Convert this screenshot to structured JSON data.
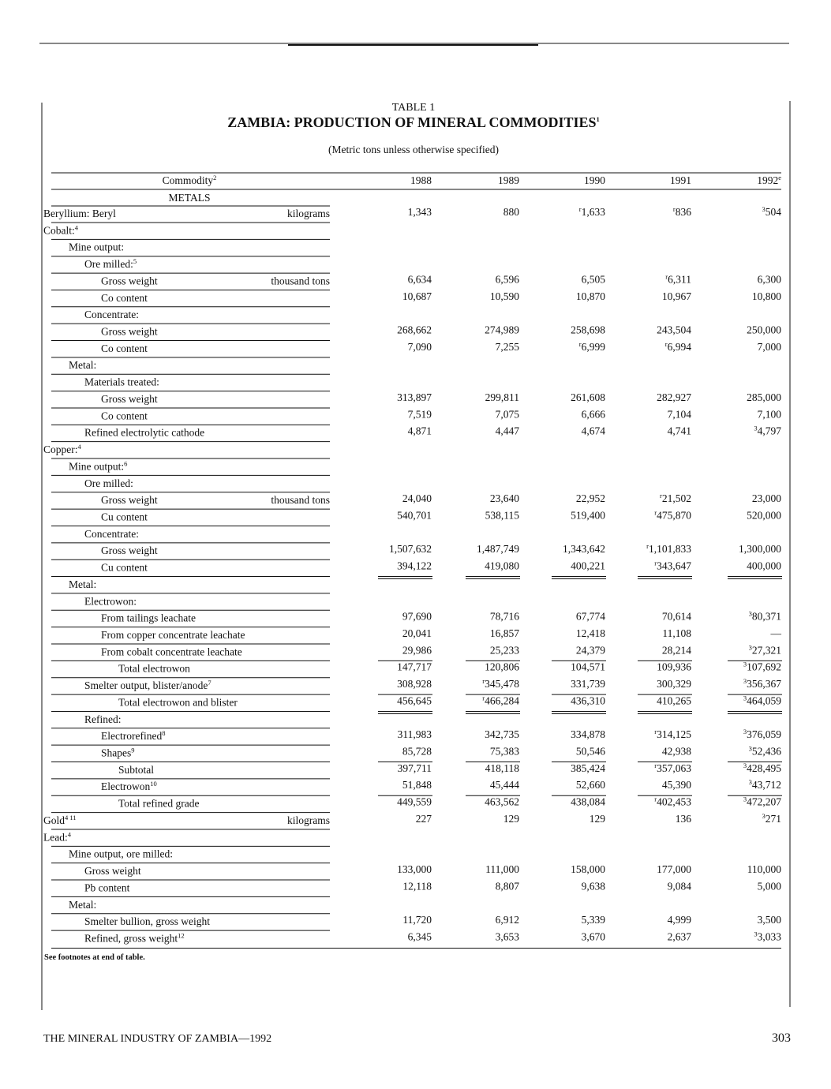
{
  "header": {
    "table_number": "TABLE 1",
    "title": "ZAMBIA: PRODUCTION OF MINERAL COMMODITIES",
    "title_note": "1",
    "subtitle": "(Metric tons unless otherwise specified)"
  },
  "table": {
    "columns": [
      {
        "label": "Commodity",
        "note": "2"
      },
      {
        "label": "1988"
      },
      {
        "label": "1989"
      },
      {
        "label": "1990"
      },
      {
        "label": "1991"
      },
      {
        "label": "1992",
        "note": "e"
      }
    ],
    "section": "METALS",
    "rows": [
      {
        "label": "Beryllium: Beryl",
        "unit": "kilograms",
        "values": [
          "1,343",
          "880",
          {
            "note": "r",
            "value": "1,633"
          },
          {
            "note": "r",
            "value": "836"
          },
          {
            "note": "3",
            "value": "504"
          }
        ]
      },
      {
        "label": "Cobalt:",
        "note": "4"
      },
      {
        "label": "Mine output:"
      },
      {
        "label": "Ore milled:",
        "note": "5"
      },
      {
        "label": "Gross weight",
        "unit": "thousand tons",
        "values": [
          "6,634",
          "6,596",
          "6,505",
          {
            "note": "r",
            "value": "6,311"
          },
          "6,300"
        ]
      },
      {
        "label": "Co content",
        "values": [
          "10,687",
          "10,590",
          "10,870",
          "10,967",
          "10,800"
        ]
      },
      {
        "label": "Concentrate:"
      },
      {
        "label": "Gross weight",
        "values": [
          "268,662",
          "274,989",
          "258,698",
          "243,504",
          "250,000"
        ]
      },
      {
        "label": "Co content",
        "values": [
          "7,090",
          "7,255",
          {
            "note": "r",
            "value": "6,999"
          },
          {
            "note": "r",
            "value": "6,994"
          },
          "7,000"
        ]
      },
      {
        "label": "Metal:"
      },
      {
        "label": "Materials treated:"
      },
      {
        "label": "Gross weight",
        "values": [
          "313,897",
          "299,811",
          "261,608",
          "282,927",
          "285,000"
        ]
      },
      {
        "label": "Co content",
        "values": [
          "7,519",
          "7,075",
          "6,666",
          "7,104",
          "7,100"
        ]
      },
      {
        "label": "Refined electrolytic cathode",
        "values": [
          "4,871",
          "4,447",
          "4,674",
          "4,741",
          {
            "note": "3",
            "value": "4,797"
          }
        ]
      },
      {
        "label": "Copper:",
        "note": "4"
      },
      {
        "label": "Mine output:",
        "note": "6"
      },
      {
        "label": "Ore milled:"
      },
      {
        "label": "Gross weight",
        "unit": "thousand tons",
        "values": [
          "24,040",
          "23,640",
          "22,952",
          {
            "note": "r",
            "value": "21,502"
          },
          "23,000"
        ]
      },
      {
        "label": "Cu content",
        "values": [
          "540,701",
          "538,115",
          "519,400",
          {
            "note": "r",
            "value": "475,870"
          },
          "520,000"
        ]
      },
      {
        "label": "Concentrate:"
      },
      {
        "label": "Gross weight",
        "values": [
          "1,507,632",
          "1,487,749",
          "1,343,642",
          {
            "note": "r",
            "value": "1,101,833"
          },
          "1,300,000"
        ]
      },
      {
        "label": "Cu content",
        "values": [
          "394,122",
          "419,080",
          "400,221",
          {
            "note": "r",
            "value": "343,647"
          },
          "400,000"
        ]
      },
      {
        "label": "Metal:"
      },
      {
        "label": "Electrowon:"
      },
      {
        "label": "From tailings leachate",
        "values": [
          "97,690",
          "78,716",
          "67,774",
          "70,614",
          {
            "note": "3",
            "value": "80,371"
          }
        ]
      },
      {
        "label": "From copper concentrate leachate",
        "values": [
          "20,041",
          "16,857",
          "12,418",
          "11,108",
          "—"
        ]
      },
      {
        "label": "From cobalt concentrate leachate",
        "values": [
          "29,986",
          "25,233",
          "24,379",
          "28,214",
          {
            "note": "3",
            "value": "27,321"
          }
        ]
      },
      {
        "label": "Total electrowon",
        "values": [
          "147,717",
          "120,806",
          "104,571",
          "109,936",
          {
            "note": "3",
            "value": "107,692"
          }
        ]
      },
      {
        "label": "Smelter output, blister/anode",
        "note": "7",
        "values": [
          "308,928",
          {
            "note": "r",
            "value": "345,478"
          },
          "331,739",
          "300,329",
          {
            "note": "3",
            "value": "356,367"
          }
        ]
      },
      {
        "label": "Total electrowon and blister",
        "values": [
          "456,645",
          {
            "note": "r",
            "value": "466,284"
          },
          "436,310",
          "410,265",
          {
            "note": "3",
            "value": "464,059"
          }
        ]
      },
      {
        "label": "Refined:"
      },
      {
        "label": "Electrorefined",
        "note": "8",
        "values": [
          "311,983",
          "342,735",
          "334,878",
          {
            "note": "r",
            "value": "314,125"
          },
          {
            "note": "3",
            "value": "376,059"
          }
        ]
      },
      {
        "label": "Shapes",
        "note": "9",
        "values": [
          "85,728",
          "75,383",
          "50,546",
          "42,938",
          {
            "note": "3",
            "value": "52,436"
          }
        ]
      },
      {
        "label": "Subtotal",
        "values": [
          "397,711",
          "418,118",
          "385,424",
          {
            "note": "r",
            "value": "357,063"
          },
          {
            "note": "3",
            "value": "428,495"
          }
        ]
      },
      {
        "label": "Electrowon",
        "note": "10",
        "values": [
          "51,848",
          "45,444",
          "52,660",
          "45,390",
          {
            "note": "3",
            "value": "43,712"
          }
        ]
      },
      {
        "label": "Total refined grade",
        "values": [
          "449,559",
          "463,562",
          "438,084",
          {
            "note": "r",
            "value": "402,453"
          },
          {
            "note": "3",
            "value": "472,207"
          }
        ]
      },
      {
        "label": "Gold",
        "note": "4 11",
        "unit": "kilograms",
        "values": [
          "227",
          "129",
          "129",
          "136",
          {
            "note": "3",
            "value": "271"
          }
        ]
      },
      {
        "label": "Lead:",
        "note": "4"
      },
      {
        "label": "Mine output, ore milled:"
      },
      {
        "label": "Gross weight",
        "values": [
          "133,000",
          "111,000",
          "158,000",
          "177,000",
          "110,000"
        ]
      },
      {
        "label": "Pb content",
        "values": [
          "12,118",
          "8,807",
          "9,638",
          "9,084",
          "5,000"
        ]
      },
      {
        "label": "Metal:"
      },
      {
        "label": "Smelter bullion, gross weight",
        "values": [
          "11,720",
          "6,912",
          "5,339",
          "4,999",
          "3,500"
        ]
      },
      {
        "label": "Refined, gross weight",
        "note": "12",
        "values": [
          "6,345",
          "3,653",
          "3,670",
          "2,637",
          {
            "note": "3",
            "value": "3,033"
          }
        ]
      }
    ]
  },
  "footnote": "See footnotes at end of table.",
  "footer": {
    "left": "THE MINERAL INDUSTRY OF ZAMBIA—1992",
    "page": "303"
  }
}
